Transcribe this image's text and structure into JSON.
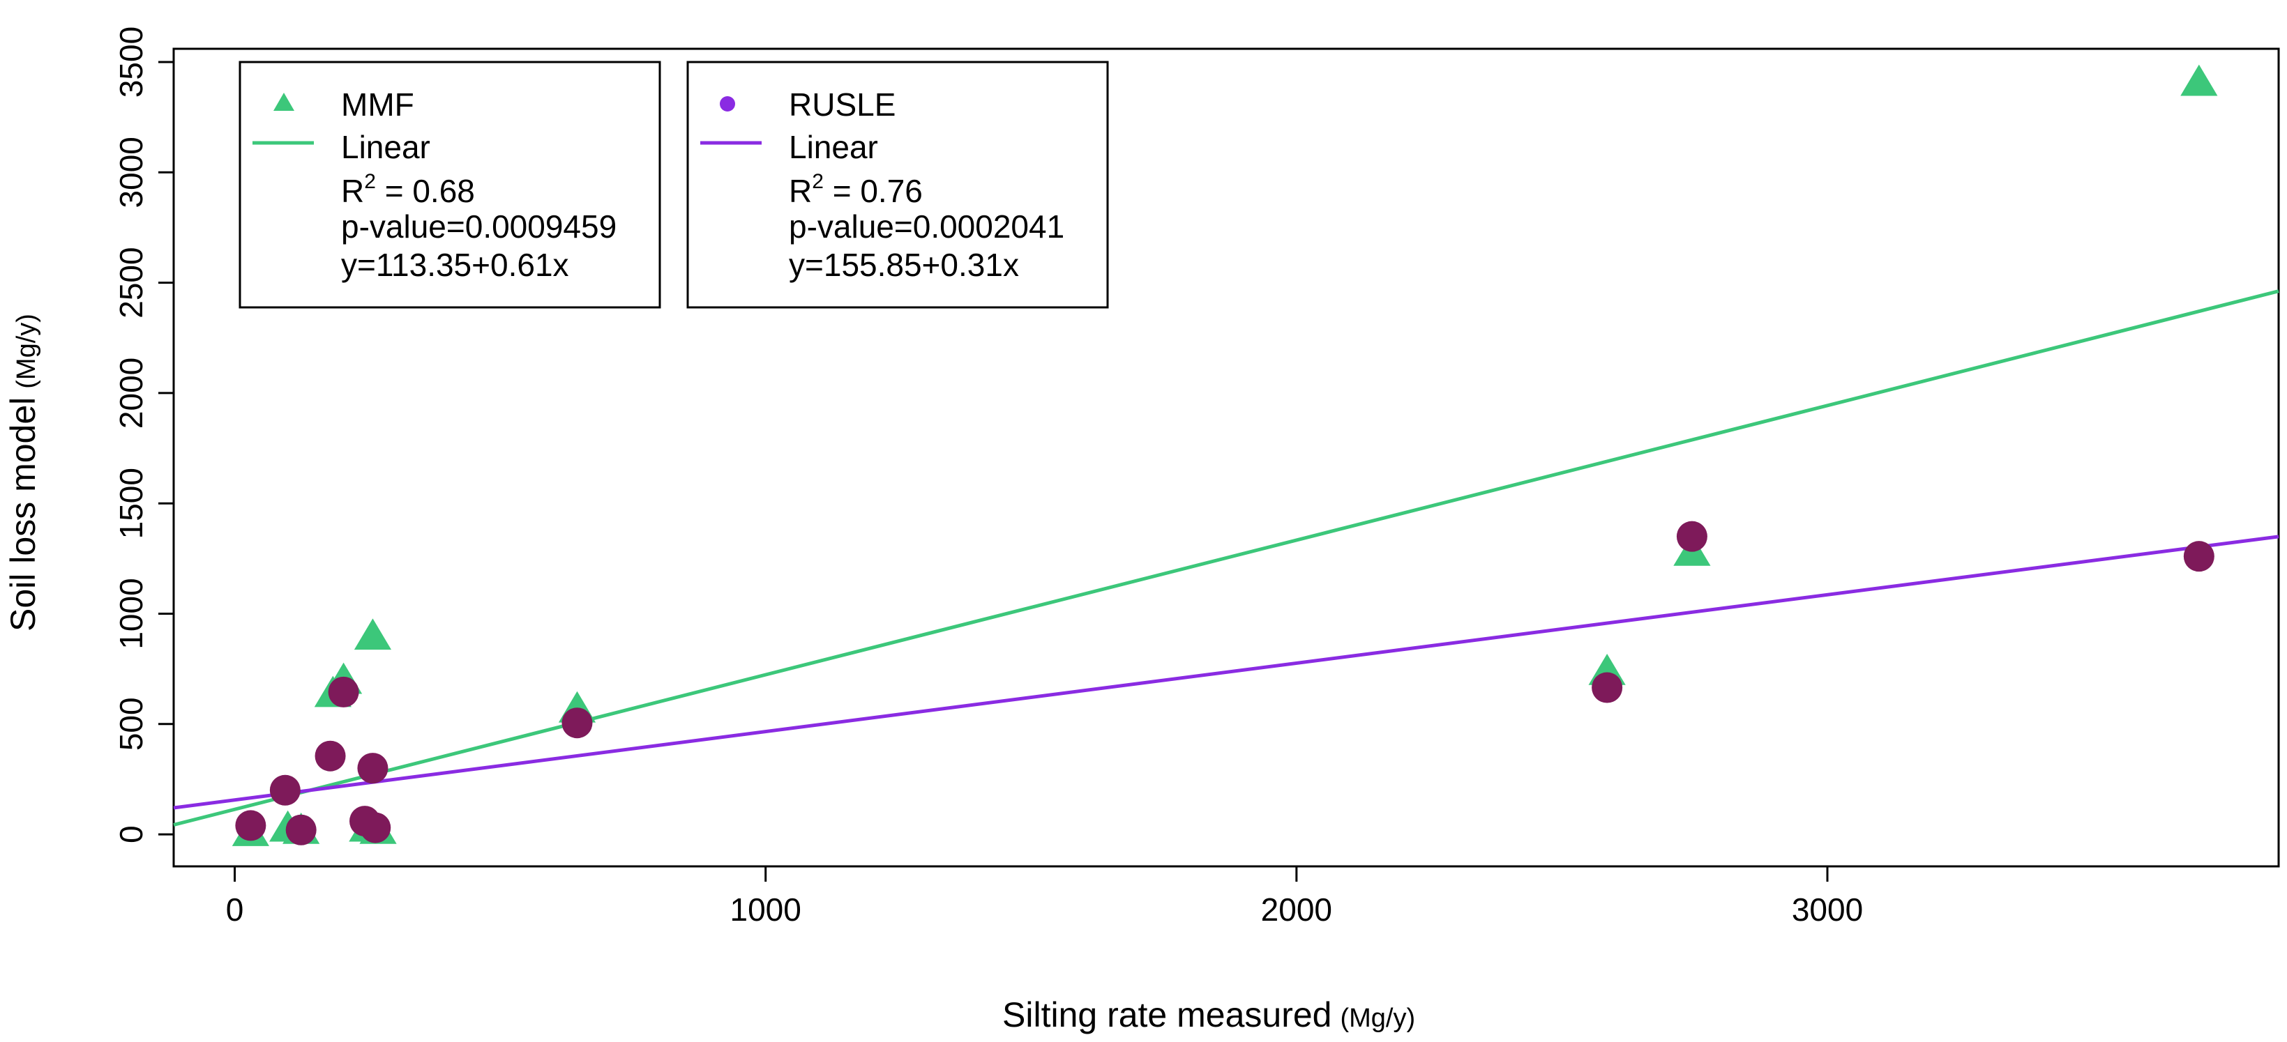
{
  "chart_data": {
    "type": "scatter",
    "title": "",
    "xlabel": "Silting rate measured",
    "xlabel_unit": "(Mg/y)",
    "ylabel": "Soil loss model",
    "ylabel_unit": "(Mg/y)",
    "xlim": [
      -115,
      3850
    ],
    "ylim": [
      -145,
      3560
    ],
    "xticks": [
      0,
      1000,
      2000,
      3000
    ],
    "xtick_labels": [
      "0",
      "1000",
      "2000",
      "3000"
    ],
    "yticks": [
      0,
      500,
      1000,
      1500,
      2000,
      2500,
      3000,
      3500
    ],
    "ytick_labels": [
      "0",
      "500",
      "1000",
      "1500",
      "2000",
      "2500",
      "3000",
      "3500"
    ],
    "series": [
      {
        "name": "MMF",
        "marker": "triangle",
        "color": "#3CC77A",
        "points": [
          {
            "x": 30,
            "y": 0
          },
          {
            "x": 100,
            "y": 20
          },
          {
            "x": 125,
            "y": 10
          },
          {
            "x": 185,
            "y": 630
          },
          {
            "x": 205,
            "y": 690
          },
          {
            "x": 250,
            "y": 20
          },
          {
            "x": 260,
            "y": 890
          },
          {
            "x": 270,
            "y": 10
          },
          {
            "x": 645,
            "y": 560
          },
          {
            "x": 2585,
            "y": 730
          },
          {
            "x": 2745,
            "y": 1270
          },
          {
            "x": 3700,
            "y": 3400
          }
        ],
        "fit": {
          "label": "Linear",
          "intercept": 113.35,
          "slope": 0.61,
          "color": "#3CC77A"
        },
        "stats": {
          "r2_prefix": "R",
          "r2_sup": "2",
          "r2_value": " = 0.68",
          "p_value": "p-value=0.0009459",
          "equation": "y=113.35+0.61x"
        }
      },
      {
        "name": "RUSLE",
        "marker": "circle",
        "color": "#7E1A5A",
        "legend_color": "#8A2BE2",
        "points": [
          {
            "x": 30,
            "y": 40
          },
          {
            "x": 95,
            "y": 200
          },
          {
            "x": 125,
            "y": 20
          },
          {
            "x": 180,
            "y": 355
          },
          {
            "x": 205,
            "y": 645
          },
          {
            "x": 245,
            "y": 60
          },
          {
            "x": 260,
            "y": 300
          },
          {
            "x": 265,
            "y": 30
          },
          {
            "x": 645,
            "y": 505
          },
          {
            "x": 2585,
            "y": 665
          },
          {
            "x": 2745,
            "y": 1350
          },
          {
            "x": 3700,
            "y": 1260
          }
        ],
        "fit": {
          "label": "Linear",
          "intercept": 155.85,
          "slope": 0.31,
          "color": "#8A2BE2"
        },
        "stats": {
          "r2_prefix": "R",
          "r2_sup": "2",
          "r2_value": " = 0.76",
          "p_value": "p-value=0.0002041",
          "equation": "y=155.85+0.31x"
        }
      }
    ]
  }
}
